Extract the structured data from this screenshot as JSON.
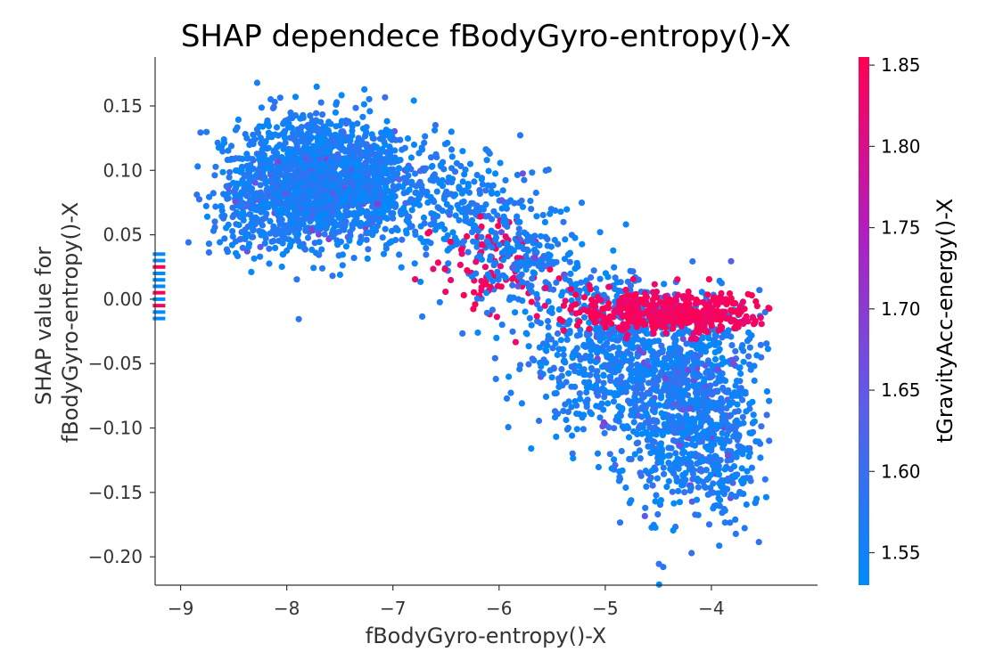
{
  "chart_data": {
    "type": "scatter",
    "title": "SHAP dependece fBodyGyro-entropy()-X",
    "xlabel": "fBodyGyro-entropy()-X",
    "ylabel_lines": [
      "SHAP value for",
      "fBodyGyro-entropy()-X"
    ],
    "xlim": [
      -9.24,
      -3.0
    ],
    "ylim": [
      -0.222,
      0.188
    ],
    "x_ticks": [
      -9,
      -8,
      -7,
      -6,
      -5,
      -4
    ],
    "x_tick_labels": [
      "−9",
      "−8",
      "−7",
      "−6",
      "−5",
      "−4"
    ],
    "y_ticks": [
      0.15,
      0.1,
      0.05,
      0.0,
      -0.05,
      -0.1,
      -0.15,
      -0.2
    ],
    "y_tick_labels": [
      "0.15",
      "0.10",
      "0.05",
      "0.00",
      "−0.05",
      "−0.10",
      "−0.15",
      "−0.20"
    ],
    "colorbar": {
      "label": "tGravityAcc-energy()-X",
      "range": [
        1.53,
        1.855
      ],
      "ticks": [
        1.55,
        1.6,
        1.65,
        1.7,
        1.75,
        1.8,
        1.85
      ],
      "tick_labels": [
        "1.55",
        "1.60",
        "1.65",
        "1.70",
        "1.75",
        "1.80",
        "1.85"
      ],
      "colormap": [
        "#008afb",
        "#5a5fe9",
        "#b01fbf",
        "#ff0052"
      ]
    },
    "missing_strip": {
      "x": -9.22,
      "y_values": [
        0.035,
        0.03,
        0.025,
        0.02,
        0.015,
        0.01,
        0.005,
        0.0,
        -0.005,
        -0.01,
        -0.015
      ],
      "colors": [
        "#008bfb",
        "#008bfb",
        "#ff0052",
        "#008bfb",
        "#008bfb",
        "#008bfb",
        "#ff0052",
        "#008bfb",
        "#ff0052",
        "#008bfb",
        "#008bfb"
      ]
    },
    "clusters": [
      {
        "x_mean": -7.75,
        "x_sd": 0.35,
        "y_mean": 0.093,
        "y_sd": 0.025,
        "n": 1300,
        "c_base": 1.56,
        "c_spread": 0.03
      },
      {
        "x_mean": -7.2,
        "x_sd": 0.3,
        "y_mean": 0.09,
        "y_sd": 0.022,
        "n": 450,
        "c_base": 1.56,
        "c_spread": 0.04
      },
      {
        "x_mean": -8.3,
        "x_sd": 0.25,
        "y_mean": 0.07,
        "y_sd": 0.025,
        "n": 200,
        "c_base": 1.56,
        "c_spread": 0.03
      },
      {
        "x_mean": -6.4,
        "x_sd": 0.3,
        "y_mean": 0.07,
        "y_sd": 0.025,
        "n": 220,
        "c_base": 1.56,
        "c_spread": 0.03
      },
      {
        "x_mean": -6.1,
        "x_sd": 0.25,
        "y_mean": 0.03,
        "y_sd": 0.018,
        "n": 90,
        "c_base": 1.84,
        "c_spread": 0.02
      },
      {
        "x_mean": -5.75,
        "x_sd": 0.25,
        "y_mean": 0.035,
        "y_sd": 0.025,
        "n": 200,
        "c_base": 1.56,
        "c_spread": 0.03
      },
      {
        "x_mean": -5.0,
        "x_sd": 0.35,
        "y_mean": -0.04,
        "y_sd": 0.03,
        "n": 500,
        "c_base": 1.56,
        "c_spread": 0.04
      },
      {
        "x_mean": -4.25,
        "x_sd": 0.35,
        "y_mean": -0.08,
        "y_sd": 0.04,
        "n": 1000,
        "c_base": 1.56,
        "c_spread": 0.04
      },
      {
        "x_mean": -4.4,
        "x_sd": 0.45,
        "y_mean": -0.01,
        "y_sd": 0.008,
        "n": 450,
        "c_base": 1.84,
        "c_spread": 0.02
      },
      {
        "x_mean": -3.9,
        "x_sd": 0.15,
        "y_mean": -0.13,
        "y_sd": 0.03,
        "n": 120,
        "c_base": 1.56,
        "c_spread": 0.03
      }
    ]
  }
}
